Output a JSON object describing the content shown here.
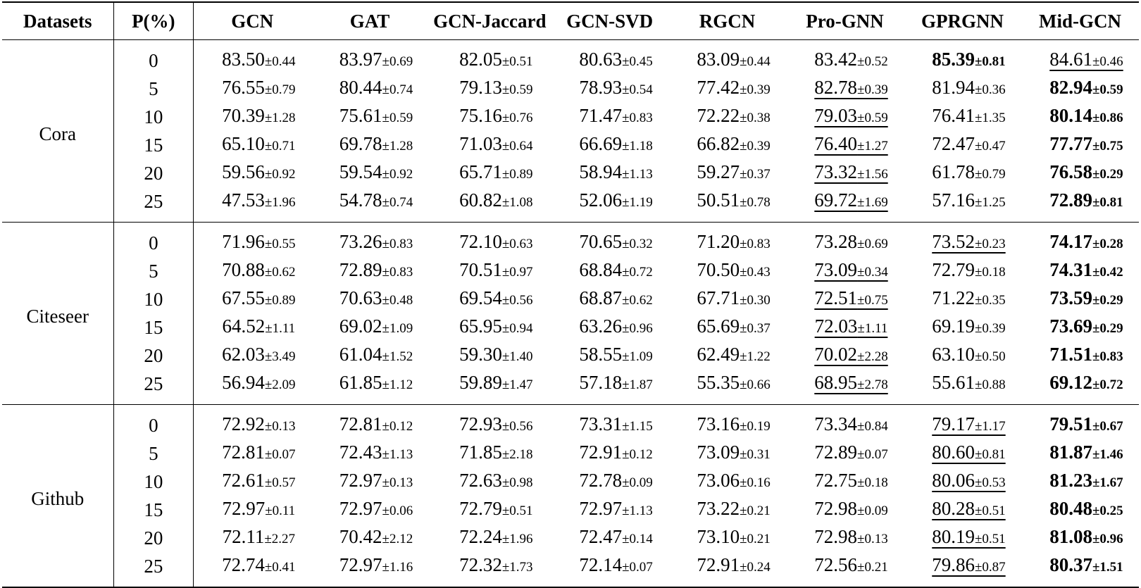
{
  "table": {
    "headers": [
      "Datasets",
      "P(%)",
      "GCN",
      "GAT",
      "GCN-Jaccard",
      "GCN-SVD",
      "RGCN",
      "Pro-GNN",
      "GPRGNN",
      "Mid-GCN"
    ],
    "groups": [
      {
        "dataset": "Cora",
        "rows": [
          {
            "p": "0",
            "cells": [
              {
                "v": "83.50",
                "sd": "±0.44"
              },
              {
                "v": "83.97",
                "sd": "±0.69"
              },
              {
                "v": "82.05",
                "sd": "±0.51"
              },
              {
                "v": "80.63",
                "sd": "±0.45"
              },
              {
                "v": "83.09",
                "sd": "±0.44"
              },
              {
                "v": "83.42",
                "sd": "±0.52"
              },
              {
                "v": "85.39",
                "sd": "±0.81",
                "style": "bold"
              },
              {
                "v": "84.61",
                "sd": "±0.46",
                "style": "underline"
              }
            ]
          },
          {
            "p": "5",
            "cells": [
              {
                "v": "76.55",
                "sd": "±0.79"
              },
              {
                "v": "80.44",
                "sd": "±0.74"
              },
              {
                "v": "79.13",
                "sd": "±0.59"
              },
              {
                "v": "78.93",
                "sd": "±0.54"
              },
              {
                "v": "77.42",
                "sd": "±0.39"
              },
              {
                "v": "82.78",
                "sd": "±0.39",
                "style": "underline"
              },
              {
                "v": "81.94",
                "sd": "±0.36"
              },
              {
                "v": "82.94",
                "sd": "±0.59",
                "style": "bold"
              }
            ]
          },
          {
            "p": "10",
            "cells": [
              {
                "v": "70.39",
                "sd": "±1.28"
              },
              {
                "v": "75.61",
                "sd": "±0.59"
              },
              {
                "v": "75.16",
                "sd": "±0.76"
              },
              {
                "v": "71.47",
                "sd": "±0.83"
              },
              {
                "v": "72.22",
                "sd": "±0.38"
              },
              {
                "v": "79.03",
                "sd": "±0.59",
                "style": "underline"
              },
              {
                "v": "76.41",
                "sd": "±1.35"
              },
              {
                "v": "80.14",
                "sd": "±0.86",
                "style": "bold"
              }
            ]
          },
          {
            "p": "15",
            "cells": [
              {
                "v": "65.10",
                "sd": "±0.71"
              },
              {
                "v": "69.78",
                "sd": "±1.28"
              },
              {
                "v": "71.03",
                "sd": "±0.64"
              },
              {
                "v": "66.69",
                "sd": "±1.18"
              },
              {
                "v": "66.82",
                "sd": "±0.39"
              },
              {
                "v": "76.40",
                "sd": "±1.27",
                "style": "underline"
              },
              {
                "v": "72.47",
                "sd": "±0.47"
              },
              {
                "v": "77.77",
                "sd": "±0.75",
                "style": "bold"
              }
            ]
          },
          {
            "p": "20",
            "cells": [
              {
                "v": "59.56",
                "sd": "±0.92"
              },
              {
                "v": "59.54",
                "sd": "±0.92"
              },
              {
                "v": "65.71",
                "sd": "±0.89"
              },
              {
                "v": "58.94",
                "sd": "±1.13"
              },
              {
                "v": "59.27",
                "sd": "±0.37"
              },
              {
                "v": "73.32",
                "sd": "±1.56",
                "style": "underline"
              },
              {
                "v": "61.78",
                "sd": "±0.79"
              },
              {
                "v": "76.58",
                "sd": "±0.29",
                "style": "bold"
              }
            ]
          },
          {
            "p": "25",
            "cells": [
              {
                "v": "47.53",
                "sd": "±1.96"
              },
              {
                "v": "54.78",
                "sd": "±0.74"
              },
              {
                "v": "60.82",
                "sd": "±1.08"
              },
              {
                "v": "52.06",
                "sd": "±1.19"
              },
              {
                "v": "50.51",
                "sd": "±0.78"
              },
              {
                "v": "69.72",
                "sd": "±1.69",
                "style": "underline"
              },
              {
                "v": "57.16",
                "sd": "±1.25"
              },
              {
                "v": "72.89",
                "sd": "±0.81",
                "style": "bold"
              }
            ]
          }
        ]
      },
      {
        "dataset": "Citeseer",
        "rows": [
          {
            "p": "0",
            "cells": [
              {
                "v": "71.96",
                "sd": "±0.55"
              },
              {
                "v": "73.26",
                "sd": "±0.83"
              },
              {
                "v": "72.10",
                "sd": "±0.63"
              },
              {
                "v": "70.65",
                "sd": "±0.32"
              },
              {
                "v": "71.20",
                "sd": "±0.83"
              },
              {
                "v": "73.28",
                "sd": "±0.69"
              },
              {
                "v": "73.52",
                "sd": "±0.23",
                "style": "underline"
              },
              {
                "v": "74.17",
                "sd": "±0.28",
                "style": "bold"
              }
            ]
          },
          {
            "p": "5",
            "cells": [
              {
                "v": "70.88",
                "sd": "±0.62"
              },
              {
                "v": "72.89",
                "sd": "±0.83"
              },
              {
                "v": "70.51",
                "sd": "±0.97"
              },
              {
                "v": "68.84",
                "sd": "±0.72"
              },
              {
                "v": "70.50",
                "sd": "±0.43"
              },
              {
                "v": "73.09",
                "sd": "±0.34",
                "style": "underline"
              },
              {
                "v": "72.79",
                "sd": "±0.18"
              },
              {
                "v": "74.31",
                "sd": "±0.42",
                "style": "bold"
              }
            ]
          },
          {
            "p": "10",
            "cells": [
              {
                "v": "67.55",
                "sd": "±0.89"
              },
              {
                "v": "70.63",
                "sd": "±0.48"
              },
              {
                "v": "69.54",
                "sd": "±0.56"
              },
              {
                "v": "68.87",
                "sd": "±0.62"
              },
              {
                "v": "67.71",
                "sd": "±0.30"
              },
              {
                "v": "72.51",
                "sd": "±0.75",
                "style": "underline"
              },
              {
                "v": "71.22",
                "sd": "±0.35"
              },
              {
                "v": "73.59",
                "sd": "±0.29",
                "style": "bold"
              }
            ]
          },
          {
            "p": "15",
            "cells": [
              {
                "v": "64.52",
                "sd": "±1.11"
              },
              {
                "v": "69.02",
                "sd": "±1.09"
              },
              {
                "v": "65.95",
                "sd": "±0.94"
              },
              {
                "v": "63.26",
                "sd": "±0.96"
              },
              {
                "v": "65.69",
                "sd": "±0.37"
              },
              {
                "v": "72.03",
                "sd": "±1.11",
                "style": "underline"
              },
              {
                "v": "69.19",
                "sd": "±0.39"
              },
              {
                "v": "73.69",
                "sd": "±0.29",
                "style": "bold"
              }
            ]
          },
          {
            "p": "20",
            "cells": [
              {
                "v": "62.03",
                "sd": "±3.49"
              },
              {
                "v": "61.04",
                "sd": "±1.52"
              },
              {
                "v": "59.30",
                "sd": "±1.40"
              },
              {
                "v": "58.55",
                "sd": "±1.09"
              },
              {
                "v": "62.49",
                "sd": "±1.22"
              },
              {
                "v": "70.02",
                "sd": "±2.28",
                "style": "underline"
              },
              {
                "v": "63.10",
                "sd": "±0.50"
              },
              {
                "v": "71.51",
                "sd": "±0.83",
                "style": "bold"
              }
            ]
          },
          {
            "p": "25",
            "cells": [
              {
                "v": "56.94",
                "sd": "±2.09"
              },
              {
                "v": "61.85",
                "sd": "±1.12"
              },
              {
                "v": "59.89",
                "sd": "±1.47"
              },
              {
                "v": "57.18",
                "sd": "±1.87"
              },
              {
                "v": "55.35",
                "sd": "±0.66"
              },
              {
                "v": "68.95",
                "sd": "±2.78",
                "style": "underline"
              },
              {
                "v": "55.61",
                "sd": "±0.88"
              },
              {
                "v": "69.12",
                "sd": "±0.72",
                "style": "bold"
              }
            ]
          }
        ]
      },
      {
        "dataset": "Github",
        "rows": [
          {
            "p": "0",
            "cells": [
              {
                "v": "72.92",
                "sd": "±0.13"
              },
              {
                "v": "72.81",
                "sd": "±0.12"
              },
              {
                "v": "72.93",
                "sd": "±0.56"
              },
              {
                "v": "73.31",
                "sd": "±1.15"
              },
              {
                "v": "73.16",
                "sd": "±0.19"
              },
              {
                "v": "73.34",
                "sd": "±0.84"
              },
              {
                "v": "79.17",
                "sd": "±1.17",
                "style": "underline"
              },
              {
                "v": "79.51",
                "sd": "±0.67",
                "style": "bold"
              }
            ]
          },
          {
            "p": "5",
            "cells": [
              {
                "v": "72.81",
                "sd": "±0.07"
              },
              {
                "v": "72.43",
                "sd": "±1.13"
              },
              {
                "v": "71.85",
                "sd": "±2.18"
              },
              {
                "v": "72.91",
                "sd": "±0.12"
              },
              {
                "v": "73.09",
                "sd": "±0.31"
              },
              {
                "v": "72.89",
                "sd": "±0.07"
              },
              {
                "v": "80.60",
                "sd": "±0.81",
                "style": "underline"
              },
              {
                "v": "81.87",
                "sd": "±1.46",
                "style": "bold"
              }
            ]
          },
          {
            "p": "10",
            "cells": [
              {
                "v": "72.61",
                "sd": "±0.57"
              },
              {
                "v": "72.97",
                "sd": "±0.13"
              },
              {
                "v": "72.63",
                "sd": "±0.98"
              },
              {
                "v": "72.78",
                "sd": "±0.09"
              },
              {
                "v": "73.06",
                "sd": "±0.16"
              },
              {
                "v": "72.75",
                "sd": "±0.18"
              },
              {
                "v": "80.06",
                "sd": "±0.53",
                "style": "underline"
              },
              {
                "v": "81.23",
                "sd": "±1.67",
                "style": "bold"
              }
            ]
          },
          {
            "p": "15",
            "cells": [
              {
                "v": "72.97",
                "sd": "±0.11"
              },
              {
                "v": "72.97",
                "sd": "±0.06"
              },
              {
                "v": "72.79",
                "sd": "±0.51"
              },
              {
                "v": "72.97",
                "sd": "±1.13"
              },
              {
                "v": "73.22",
                "sd": "±0.21"
              },
              {
                "v": "72.98",
                "sd": "±0.09"
              },
              {
                "v": "80.28",
                "sd": "±0.51",
                "style": "underline"
              },
              {
                "v": "80.48",
                "sd": "±0.25",
                "style": "bold"
              }
            ]
          },
          {
            "p": "20",
            "cells": [
              {
                "v": "72.11",
                "sd": "±2.27"
              },
              {
                "v": "70.42",
                "sd": "±2.12"
              },
              {
                "v": "72.24",
                "sd": "±1.96"
              },
              {
                "v": "72.47",
                "sd": "±0.14"
              },
              {
                "v": "73.10",
                "sd": "±0.21"
              },
              {
                "v": "72.98",
                "sd": "±0.13"
              },
              {
                "v": "80.19",
                "sd": "±0.51",
                "style": "underline"
              },
              {
                "v": "81.08",
                "sd": "±0.96",
                "style": "bold"
              }
            ]
          },
          {
            "p": "25",
            "cells": [
              {
                "v": "72.74",
                "sd": "±0.41"
              },
              {
                "v": "72.97",
                "sd": "±1.16"
              },
              {
                "v": "72.32",
                "sd": "±1.73"
              },
              {
                "v": "72.14",
                "sd": "±0.07"
              },
              {
                "v": "72.91",
                "sd": "±0.24"
              },
              {
                "v": "72.56",
                "sd": "±0.21"
              },
              {
                "v": "79.86",
                "sd": "±0.87",
                "style": "underline"
              },
              {
                "v": "80.37",
                "sd": "±1.51",
                "style": "bold"
              }
            ]
          }
        ]
      }
    ]
  }
}
